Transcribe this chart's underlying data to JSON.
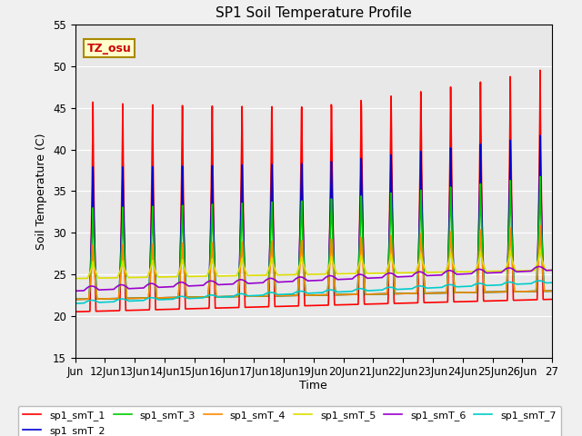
{
  "title": "SP1 Soil Temperature Profile",
  "xlabel": "Time",
  "ylabel": "Soil Temperature (C)",
  "ylim": [
    15,
    55
  ],
  "xtick_labels": [
    "Jun",
    "12Jun",
    "13Jun",
    "14Jun",
    "15Jun",
    "16Jun",
    "17Jun",
    "18Jun",
    "19Jun",
    "20Jun",
    "21Jun",
    "22Jun",
    "23Jun",
    "24Jun",
    "25Jun",
    "26Jun",
    "27"
  ],
  "legend_labels": [
    "sp1_smT_1",
    "sp1_smT_2",
    "sp1_smT_3",
    "sp1_smT_4",
    "sp1_smT_5",
    "sp1_smT_6",
    "sp1_smT_7"
  ],
  "line_colors": [
    "#ff0000",
    "#0000cc",
    "#00cc00",
    "#ff8800",
    "#dddd00",
    "#9900cc",
    "#00cccc"
  ],
  "bg_color": "#e8e8e8",
  "fig_bg_color": "#f0f0f0",
  "annotation_text": "TZ_osu",
  "annotation_color": "#cc0000",
  "annotation_bg": "#ffffcc",
  "annotation_border": "#aa8800",
  "yticks": [
    15,
    20,
    25,
    30,
    35,
    40,
    45,
    50,
    55
  ]
}
